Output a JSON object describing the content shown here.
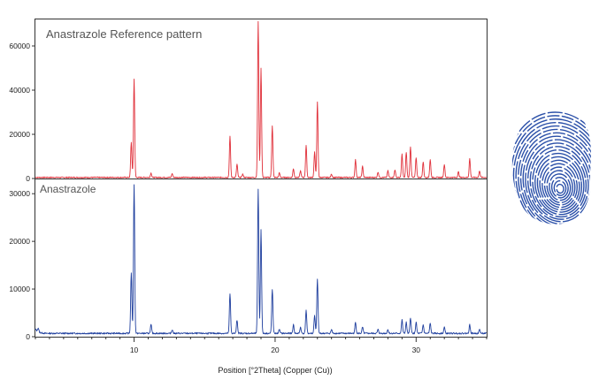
{
  "chart_data": [
    {
      "type": "line",
      "title": "Anastrazole Reference pattern",
      "xlim": [
        3,
        35
      ],
      "ylim": [
        0,
        72000
      ],
      "yticks": [
        0,
        20000,
        40000,
        60000
      ],
      "color": "#e0303a",
      "baseline": 500,
      "noise": 250,
      "peaks": [
        {
          "x": 9.8,
          "y": 16500
        },
        {
          "x": 10.0,
          "y": 45000
        },
        {
          "x": 11.2,
          "y": 2500
        },
        {
          "x": 12.7,
          "y": 2200
        },
        {
          "x": 16.8,
          "y": 19000
        },
        {
          "x": 17.3,
          "y": 6500
        },
        {
          "x": 17.7,
          "y": 2000
        },
        {
          "x": 18.8,
          "y": 71000
        },
        {
          "x": 19.0,
          "y": 50000
        },
        {
          "x": 19.8,
          "y": 24000
        },
        {
          "x": 20.3,
          "y": 2500
        },
        {
          "x": 21.3,
          "y": 4500
        },
        {
          "x": 21.8,
          "y": 3500
        },
        {
          "x": 22.2,
          "y": 15000
        },
        {
          "x": 22.8,
          "y": 12000
        },
        {
          "x": 23.0,
          "y": 34500
        },
        {
          "x": 24.0,
          "y": 2000
        },
        {
          "x": 25.7,
          "y": 8500
        },
        {
          "x": 26.2,
          "y": 5500
        },
        {
          "x": 27.3,
          "y": 3000
        },
        {
          "x": 28.0,
          "y": 3500
        },
        {
          "x": 28.5,
          "y": 4000
        },
        {
          "x": 29.0,
          "y": 11000
        },
        {
          "x": 29.3,
          "y": 12000
        },
        {
          "x": 29.6,
          "y": 14500
        },
        {
          "x": 30.0,
          "y": 9500
        },
        {
          "x": 30.5,
          "y": 7500
        },
        {
          "x": 31.0,
          "y": 8500
        },
        {
          "x": 32.0,
          "y": 6500
        },
        {
          "x": 33.0,
          "y": 3000
        },
        {
          "x": 33.8,
          "y": 9000
        },
        {
          "x": 34.5,
          "y": 3500
        }
      ]
    },
    {
      "type": "line",
      "title": "Anastrazole",
      "xlim": [
        3,
        35
      ],
      "ylim": [
        0,
        33000
      ],
      "yticks": [
        0,
        10000,
        20000,
        30000
      ],
      "color": "#1f3f9e",
      "baseline": 700,
      "noise": 150,
      "peaks": [
        {
          "x": 3.2,
          "y": 1500
        },
        {
          "x": 9.8,
          "y": 13500
        },
        {
          "x": 10.0,
          "y": 32000
        },
        {
          "x": 11.2,
          "y": 2500
        },
        {
          "x": 12.7,
          "y": 1500
        },
        {
          "x": 16.8,
          "y": 9000
        },
        {
          "x": 17.3,
          "y": 3500
        },
        {
          "x": 18.8,
          "y": 31000
        },
        {
          "x": 19.0,
          "y": 22500
        },
        {
          "x": 19.8,
          "y": 10000
        },
        {
          "x": 20.3,
          "y": 1500
        },
        {
          "x": 21.3,
          "y": 2500
        },
        {
          "x": 21.8,
          "y": 2000
        },
        {
          "x": 22.2,
          "y": 5500
        },
        {
          "x": 22.8,
          "y": 4500
        },
        {
          "x": 23.0,
          "y": 12000
        },
        {
          "x": 24.0,
          "y": 1500
        },
        {
          "x": 25.7,
          "y": 3000
        },
        {
          "x": 26.2,
          "y": 2000
        },
        {
          "x": 27.3,
          "y": 1500
        },
        {
          "x": 28.0,
          "y": 1500
        },
        {
          "x": 29.0,
          "y": 3500
        },
        {
          "x": 29.3,
          "y": 3000
        },
        {
          "x": 29.6,
          "y": 4000
        },
        {
          "x": 30.0,
          "y": 3000
        },
        {
          "x": 30.5,
          "y": 2500
        },
        {
          "x": 31.0,
          "y": 2800
        },
        {
          "x": 32.0,
          "y": 2000
        },
        {
          "x": 33.8,
          "y": 2500
        },
        {
          "x": 34.5,
          "y": 1500
        }
      ]
    }
  ],
  "x_axis": {
    "label": "Position [°2Theta] (Copper (Cu))",
    "ticks": [
      10,
      20,
      30
    ]
  },
  "decor": {
    "fingerprint_icon": "fingerprint-icon",
    "fingerprint_color": "#2a4fa8"
  }
}
